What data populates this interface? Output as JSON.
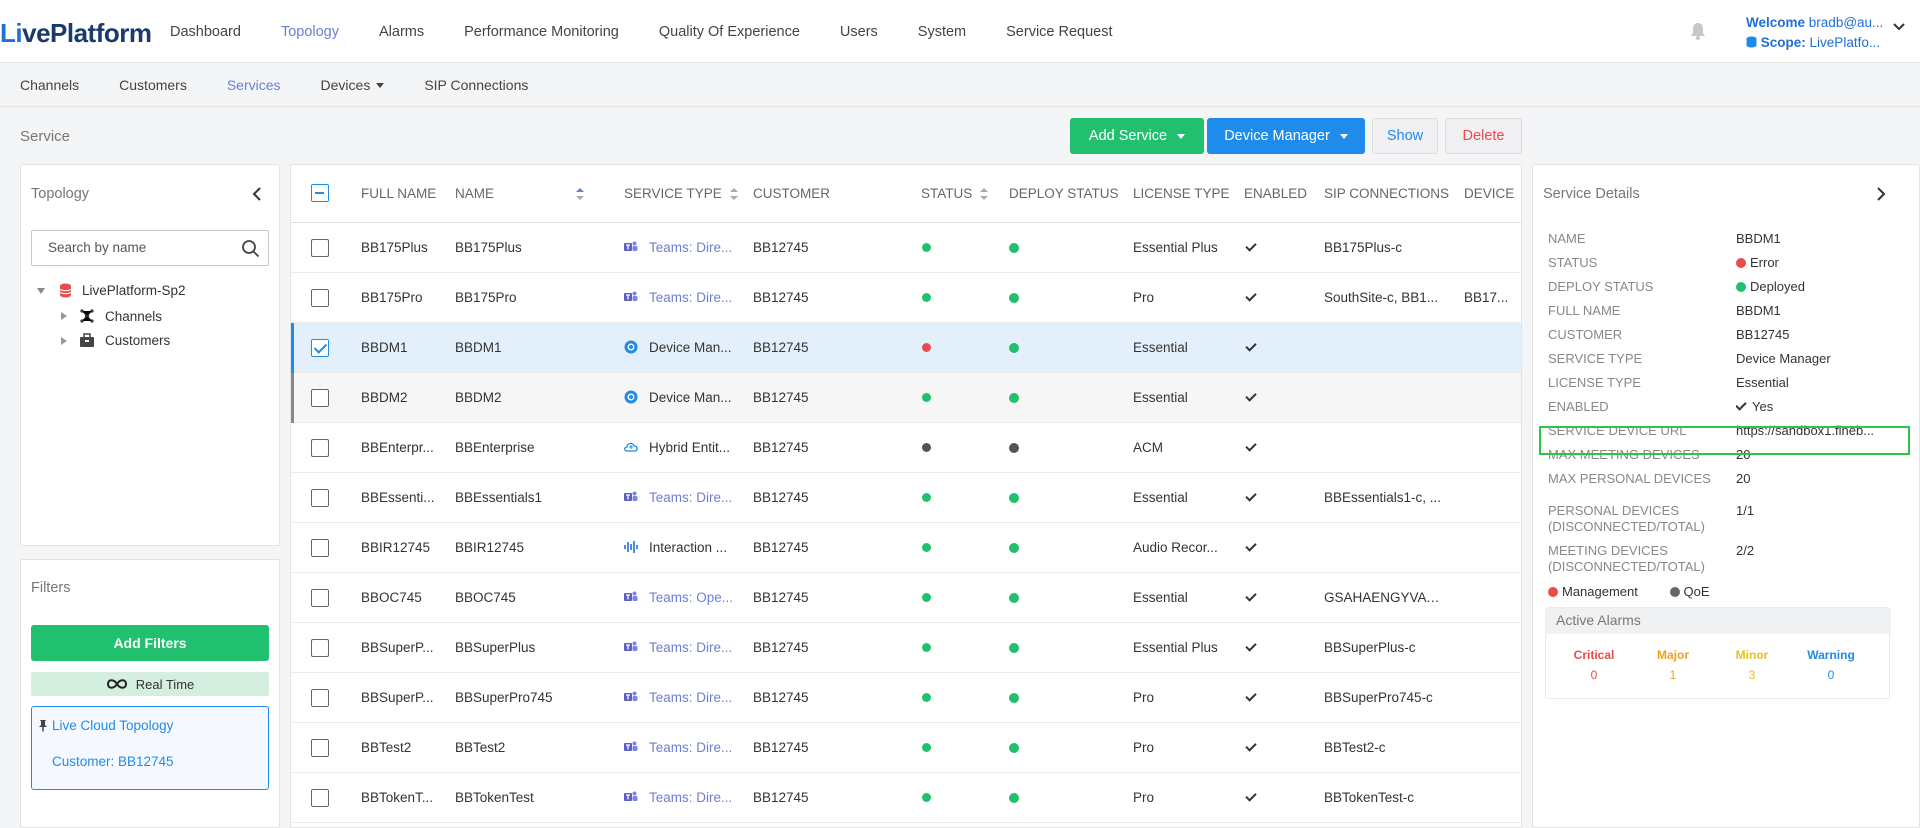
{
  "app": {
    "logo_text": "LivePlatform",
    "nav": [
      "Dashboard",
      "Topology",
      "Alarms",
      "Performance Monitoring",
      "Quality Of Experience",
      "Users",
      "System",
      "Service Request"
    ],
    "user": {
      "welcome_label": "Welcome",
      "username": "bradb@au...",
      "scope_label": "Scope:",
      "scope_value": "LivePlatfo..."
    }
  },
  "subnav": [
    "Channels",
    "Customers",
    "Services",
    "Devices",
    "SIP Connections"
  ],
  "page": {
    "title": "Service",
    "buttons": {
      "add_service": "Add Service",
      "device_manager": "Device Manager",
      "show": "Show",
      "delete": "Delete"
    }
  },
  "topology": {
    "title": "Topology",
    "search_placeholder": "Search by name",
    "tree": {
      "root": "LivePlatform-Sp2",
      "children": [
        "Channels",
        "Customers"
      ]
    }
  },
  "filters": {
    "title": "Filters",
    "add_label": "Add Filters",
    "realtime_label": "Real Time",
    "live_topology": "Live Cloud Topology",
    "customer_filter": "Customer: BB12745"
  },
  "table": {
    "headers": [
      "FULL NAME",
      "NAME",
      "SERVICE TYPE",
      "CUSTOMER",
      "STATUS",
      "DEPLOY STATUS",
      "LICENSE TYPE",
      "ENABLED",
      "SIP CONNECTIONS",
      "DEVICE"
    ],
    "rows": [
      {
        "full_name": "BB175Plus",
        "name": "BB175Plus",
        "service_type": "Teams: Dire...",
        "type_icon": "teams-icon",
        "customer": "BB12745",
        "status": "#20c06e",
        "deploy": "#20c06e",
        "license": "Essential Plus",
        "enabled": true,
        "sip": "BB175Plus-c",
        "device": ""
      },
      {
        "full_name": "BB175Pro",
        "name": "BB175Pro",
        "service_type": "Teams: Dire...",
        "type_icon": "teams-icon",
        "customer": "BB12745",
        "status": "#20c06e",
        "deploy": "#20c06e",
        "license": "Pro",
        "enabled": true,
        "sip": "SouthSite-c, BB1...",
        "device": "BB17..."
      },
      {
        "full_name": "BBDM1",
        "name": "BBDM1",
        "service_type": "Device Man...",
        "type_icon": "device-manager-icon",
        "customer": "BB12745",
        "status": "#e84c4c",
        "deploy": "#20c06e",
        "license": "Essential",
        "enabled": true,
        "sip": "",
        "device": ""
      },
      {
        "full_name": "BBDM2",
        "name": "BBDM2",
        "service_type": "Device Man...",
        "type_icon": "device-manager-icon",
        "customer": "BB12745",
        "status": "#20c06e",
        "deploy": "#20c06e",
        "license": "Essential",
        "enabled": true,
        "sip": "",
        "device": ""
      },
      {
        "full_name": "BBEnterpr...",
        "name": "BBEnterprise",
        "service_type": "Hybrid Entit...",
        "type_icon": "cloud-icon",
        "customer": "BB12745",
        "status": "#555555",
        "deploy": "#555555",
        "license": "ACM",
        "enabled": true,
        "sip": "",
        "device": ""
      },
      {
        "full_name": "BBEssenti...",
        "name": "BBEssentials1",
        "service_type": "Teams: Dire...",
        "type_icon": "teams-icon",
        "customer": "BB12745",
        "status": "#20c06e",
        "deploy": "#20c06e",
        "license": "Essential",
        "enabled": true,
        "sip": "BBEssentials1-c, ...",
        "device": ""
      },
      {
        "full_name": "BBIR12745",
        "name": "BBIR12745",
        "service_type": "Interaction ...",
        "type_icon": "waveform-icon",
        "customer": "BB12745",
        "status": "#20c06e",
        "deploy": "#20c06e",
        "license": "Audio Recor...",
        "enabled": true,
        "sip": "",
        "device": ""
      },
      {
        "full_name": "BBOC745",
        "name": "BBOC745",
        "service_type": "Teams: Ope...",
        "type_icon": "teams-icon",
        "customer": "BB12745",
        "status": "#20c06e",
        "deploy": "#20c06e",
        "license": "Essential",
        "enabled": true,
        "sip": "GSAHAENGYVAW...",
        "device": ""
      },
      {
        "full_name": "BBSuperP...",
        "name": "BBSuperPlus",
        "service_type": "Teams: Dire...",
        "type_icon": "teams-icon",
        "customer": "BB12745",
        "status": "#20c06e",
        "deploy": "#20c06e",
        "license": "Essential Plus",
        "enabled": true,
        "sip": "BBSuperPlus-c",
        "device": ""
      },
      {
        "full_name": "BBSuperP...",
        "name": "BBSuperPro745",
        "service_type": "Teams: Dire...",
        "type_icon": "teams-icon",
        "customer": "BB12745",
        "status": "#20c06e",
        "deploy": "#20c06e",
        "license": "Pro",
        "enabled": true,
        "sip": "BBSuperPro745-c",
        "device": ""
      },
      {
        "full_name": "BBTest2",
        "name": "BBTest2",
        "service_type": "Teams: Dire...",
        "type_icon": "teams-icon",
        "customer": "BB12745",
        "status": "#20c06e",
        "deploy": "#20c06e",
        "license": "Pro",
        "enabled": true,
        "sip": "BBTest2-c",
        "device": ""
      },
      {
        "full_name": "BBTokenT...",
        "name": "BBTokenTest",
        "service_type": "Teams: Dire...",
        "type_icon": "teams-icon",
        "customer": "BB12745",
        "status": "#20c06e",
        "deploy": "#20c06e",
        "license": "Pro",
        "enabled": true,
        "sip": "BBTokenTest-c",
        "device": ""
      }
    ]
  },
  "details": {
    "title": "Service Details",
    "fields": [
      {
        "label": "NAME",
        "value": "BBDM1"
      },
      {
        "label": "STATUS",
        "value": "Error",
        "dot": "#e84c4c"
      },
      {
        "label": "DEPLOY STATUS",
        "value": "Deployed",
        "dot": "#20c06e"
      },
      {
        "label": "FULL NAME",
        "value": "BBDM1"
      },
      {
        "label": "CUSTOMER",
        "value": "BB12745"
      },
      {
        "label": "SERVICE TYPE",
        "value": "Device Manager"
      },
      {
        "label": "LICENSE TYPE",
        "value": "Essential"
      },
      {
        "label": "ENABLED",
        "value": "Yes",
        "check": true
      },
      {
        "label": "SERVICE DEVICE URL",
        "value": "https://sandbox1.fineb..."
      },
      {
        "label": "MAX MEETING DEVICES",
        "value": "20"
      },
      {
        "label": "MAX PERSONAL DEVICES",
        "value": "20"
      },
      {
        "label": "PERSONAL DEVICES (DISCONNECTED/TOTAL)",
        "value": "1/1"
      },
      {
        "label": "MEETING DEVICES (DISCONNECTED/TOTAL)",
        "value": "2/2"
      }
    ],
    "legend": [
      {
        "label": "Management",
        "color": "#e84c4c"
      },
      {
        "label": "QoE",
        "color": "#666666"
      }
    ],
    "alarms": {
      "title": "Active Alarms",
      "items": [
        {
          "label": "Critical",
          "value": "0",
          "color": "#e84c4c"
        },
        {
          "label": "Major",
          "value": "1",
          "color": "#f0a020"
        },
        {
          "label": "Minor",
          "value": "3",
          "color": "#e8c020"
        },
        {
          "label": "Warning",
          "value": "0",
          "color": "#1f8ceb"
        }
      ]
    }
  },
  "colors": {
    "accent": "#6b7fd6",
    "green": "#20c06e",
    "blue": "#1f8ceb",
    "red": "#e84c4c"
  }
}
